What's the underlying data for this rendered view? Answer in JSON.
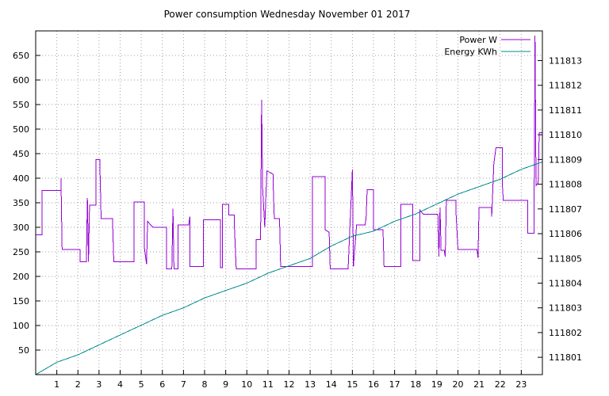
{
  "chart_data": {
    "type": "line",
    "title": "Power consumption Wednesday November 01 2017",
    "xlim": [
      0,
      24
    ],
    "x_ticks": [
      1,
      2,
      3,
      4,
      5,
      6,
      7,
      8,
      9,
      10,
      11,
      12,
      13,
      14,
      15,
      16,
      17,
      18,
      19,
      20,
      21,
      22,
      23
    ],
    "y_left": {
      "lim": [
        0,
        700
      ],
      "ticks": [
        50,
        100,
        150,
        200,
        250,
        300,
        350,
        400,
        450,
        500,
        550,
        600,
        650
      ]
    },
    "y_right": {
      "lim": [
        111800.3,
        111814.2
      ],
      "ticks": [
        111801,
        111802,
        111803,
        111804,
        111805,
        111806,
        111807,
        111808,
        111809,
        111810,
        111811,
        111812,
        111813
      ]
    },
    "grid": true,
    "legend_placement": "top-right",
    "series": [
      {
        "name": "Power W",
        "axis": "left",
        "color": "#9400d3",
        "step": true,
        "points": [
          [
            0.0,
            285
          ],
          [
            0.3,
            285
          ],
          [
            0.3,
            375
          ],
          [
            1.2,
            375
          ],
          [
            1.2,
            400
          ],
          [
            1.25,
            255
          ],
          [
            2.1,
            255
          ],
          [
            2.1,
            230
          ],
          [
            2.4,
            230
          ],
          [
            2.45,
            360
          ],
          [
            2.5,
            230
          ],
          [
            2.55,
            345
          ],
          [
            2.85,
            345
          ],
          [
            2.85,
            438
          ],
          [
            3.05,
            438
          ],
          [
            3.05,
            410
          ],
          [
            3.1,
            318
          ],
          [
            3.65,
            318
          ],
          [
            3.65,
            300
          ],
          [
            3.7,
            230
          ],
          [
            4.65,
            230
          ],
          [
            4.65,
            352
          ],
          [
            5.15,
            352
          ],
          [
            5.15,
            258
          ],
          [
            5.25,
            225
          ],
          [
            5.3,
            312
          ],
          [
            5.55,
            300
          ],
          [
            6.2,
            300
          ],
          [
            6.2,
            215
          ],
          [
            6.45,
            215
          ],
          [
            6.5,
            338
          ],
          [
            6.55,
            215
          ],
          [
            6.75,
            215
          ],
          [
            6.75,
            305
          ],
          [
            7.25,
            305
          ],
          [
            7.3,
            322
          ],
          [
            7.3,
            220
          ],
          [
            7.95,
            220
          ],
          [
            7.95,
            315
          ],
          [
            8.75,
            315
          ],
          [
            8.75,
            218
          ],
          [
            8.85,
            218
          ],
          [
            8.85,
            347
          ],
          [
            9.15,
            347
          ],
          [
            9.15,
            325
          ],
          [
            9.4,
            325
          ],
          [
            9.4,
            313
          ],
          [
            9.5,
            215
          ],
          [
            10.45,
            215
          ],
          [
            10.45,
            275
          ],
          [
            10.65,
            275
          ],
          [
            10.7,
            560
          ],
          [
            10.75,
            380
          ],
          [
            10.85,
            300
          ],
          [
            10.95,
            415
          ],
          [
            11.25,
            408
          ],
          [
            11.25,
            388
          ],
          [
            11.3,
            318
          ],
          [
            11.55,
            318
          ],
          [
            11.6,
            220
          ],
          [
            13.1,
            220
          ],
          [
            13.1,
            403
          ],
          [
            13.7,
            403
          ],
          [
            13.7,
            295
          ],
          [
            13.9,
            290
          ],
          [
            13.95,
            215
          ],
          [
            14.8,
            215
          ],
          [
            14.8,
            220
          ],
          [
            15.0,
            418
          ],
          [
            15.05,
            220
          ],
          [
            15.2,
            305
          ],
          [
            15.6,
            305
          ],
          [
            15.65,
            320
          ],
          [
            15.7,
            377
          ],
          [
            16.0,
            377
          ],
          [
            16.0,
            295
          ],
          [
            16.45,
            295
          ],
          [
            16.5,
            220
          ],
          [
            17.3,
            220
          ],
          [
            17.3,
            347
          ],
          [
            17.85,
            347
          ],
          [
            17.85,
            232
          ],
          [
            18.2,
            232
          ],
          [
            18.2,
            335
          ],
          [
            18.35,
            327
          ],
          [
            19.05,
            327
          ],
          [
            19.1,
            240
          ],
          [
            19.15,
            340
          ],
          [
            19.2,
            253
          ],
          [
            19.35,
            253
          ],
          [
            19.4,
            240
          ],
          [
            19.45,
            355
          ],
          [
            19.9,
            355
          ],
          [
            19.9,
            338
          ],
          [
            20.0,
            255
          ],
          [
            20.9,
            255
          ],
          [
            20.95,
            238
          ],
          [
            21.0,
            340
          ],
          [
            21.6,
            340
          ],
          [
            21.6,
            322
          ],
          [
            21.7,
            430
          ],
          [
            21.8,
            462
          ],
          [
            22.1,
            462
          ],
          [
            22.1,
            390
          ],
          [
            22.15,
            355
          ],
          [
            23.3,
            355
          ],
          [
            23.3,
            288
          ],
          [
            23.6,
            288
          ],
          [
            23.65,
            690
          ],
          [
            23.7,
            385
          ],
          [
            23.8,
            390
          ],
          [
            23.85,
            493
          ],
          [
            24.0,
            493
          ]
        ]
      },
      {
        "name": "Energy KWh",
        "axis": "right",
        "color": "#008b8b",
        "step": false,
        "points": [
          [
            0.0,
            111800.3
          ],
          [
            1.0,
            111800.8
          ],
          [
            2.0,
            111801.1
          ],
          [
            3.0,
            111801.5
          ],
          [
            4.0,
            111801.9
          ],
          [
            5.0,
            111802.3
          ],
          [
            6.0,
            111802.7
          ],
          [
            7.0,
            111803.0
          ],
          [
            8.0,
            111803.4
          ],
          [
            9.0,
            111803.7
          ],
          [
            10.0,
            111804.0
          ],
          [
            11.0,
            111804.4
          ],
          [
            12.0,
            111804.7
          ],
          [
            13.0,
            111805.0
          ],
          [
            14.0,
            111805.5
          ],
          [
            15.0,
            111805.9
          ],
          [
            16.0,
            111806.1
          ],
          [
            17.0,
            111806.5
          ],
          [
            18.0,
            111806.8
          ],
          [
            19.0,
            111807.2
          ],
          [
            20.0,
            111807.6
          ],
          [
            21.0,
            111807.9
          ],
          [
            22.0,
            111808.2
          ],
          [
            23.0,
            111808.6
          ],
          [
            24.0,
            111808.9
          ]
        ]
      }
    ]
  }
}
